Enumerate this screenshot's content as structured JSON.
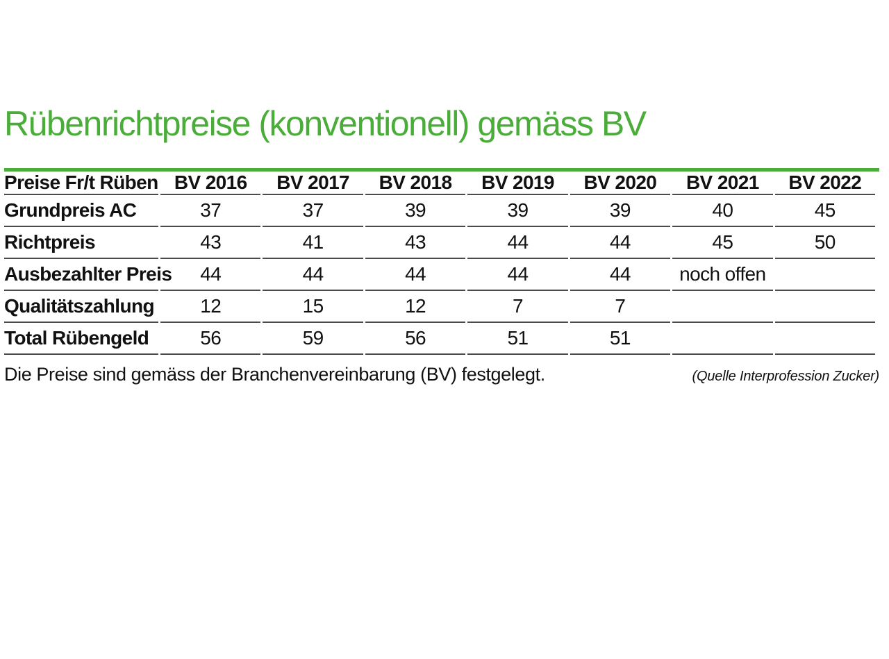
{
  "page": {
    "title": "Rübenrichtpreise (konventionell) gemäss BV"
  },
  "table": {
    "label_header": "Preise Fr/t Rüben",
    "year_headers": [
      "BV 2016",
      "BV 2017",
      "BV 2018",
      "BV 2019",
      "BV 2020",
      "BV 2021",
      "BV 2022"
    ],
    "rows": [
      {
        "label": "Grundpreis AC",
        "values": [
          "37",
          "37",
          "39",
          "39",
          "39",
          "40",
          "45"
        ]
      },
      {
        "label": "Richtpreis",
        "values": [
          "43",
          "41",
          "43",
          "44",
          "44",
          "45",
          "50"
        ]
      },
      {
        "label": "Ausbezahlter Preis",
        "values": [
          "44",
          "44",
          "44",
          "44",
          "44",
          "noch offen",
          ""
        ]
      },
      {
        "label": "Qualitätszahlung",
        "values": [
          "12",
          "15",
          "12",
          "7",
          "7",
          "",
          ""
        ]
      },
      {
        "label": "Total Rübengeld",
        "values": [
          "56",
          "59",
          "56",
          "51",
          "51",
          "",
          ""
        ]
      }
    ]
  },
  "footer": {
    "note": "Die Preise sind gemäss der Branchenvereinbarung (BV) festgelegt.",
    "source": "(Quelle Interprofession Zucker)"
  },
  "colors": {
    "title_green": "#4aac39",
    "rule_gray": "#4a4a4a",
    "text": "#111111"
  }
}
